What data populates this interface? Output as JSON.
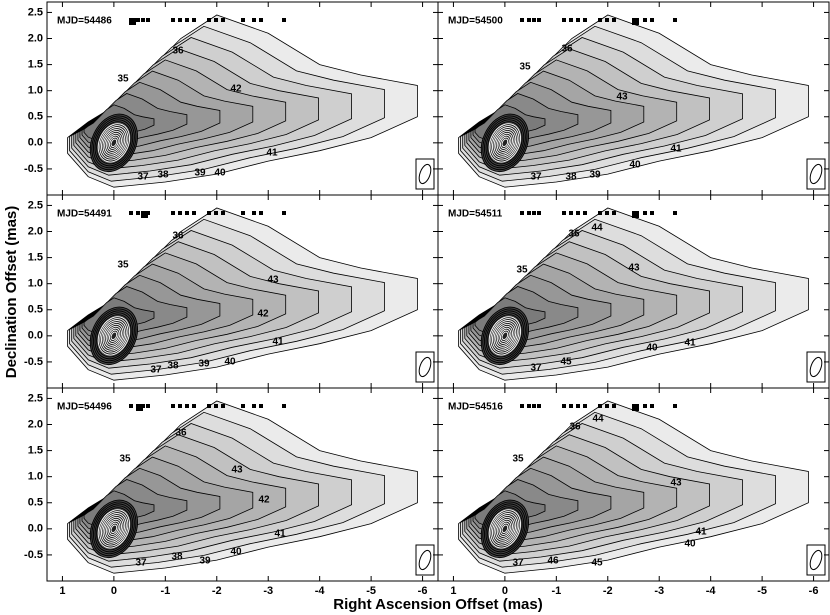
{
  "chart_data": {
    "type": "contour",
    "xlabel": "Right Ascension Offset (mas)",
    "ylabel": "Declination Offset (mas)",
    "xlim": [
      1.3,
      -6.3
    ],
    "ylim": [
      -1.0,
      2.7
    ],
    "xticks": [
      1,
      0,
      -1,
      -2,
      -3,
      -4,
      -5,
      -6
    ],
    "yticks": [
      -0.5,
      {
        "value": 0,
        "label": "0.0"
      },
      0.5,
      {
        "value": 1,
        "label": "1.0"
      },
      1.5,
      {
        "value": 2,
        "label": "2.0"
      },
      2.5
    ],
    "panels": [
      {
        "label": "MJD=54486",
        "components": [
          "35",
          "36",
          "42",
          "37",
          "38",
          "39",
          "40",
          "41"
        ]
      },
      {
        "label": "MJD=54500",
        "components": [
          "35",
          "36",
          "43",
          "37",
          "38",
          "39",
          "40",
          "41"
        ]
      },
      {
        "label": "MJD=54491",
        "components": [
          "35",
          "36",
          "43",
          "42",
          "41",
          "37",
          "38",
          "39",
          "40"
        ]
      },
      {
        "label": "MJD=54511",
        "components": [
          "35",
          "36",
          "44",
          "43",
          "37",
          "45",
          "40",
          "41"
        ]
      },
      {
        "label": "MJD=54496",
        "components": [
          "35",
          "36",
          "43",
          "42",
          "41",
          "37",
          "38",
          "39",
          "40"
        ]
      },
      {
        "label": "MJD=54516",
        "components": [
          "35",
          "36",
          "44",
          "43",
          "37",
          "46",
          "45",
          "40",
          "41"
        ]
      }
    ]
  }
}
